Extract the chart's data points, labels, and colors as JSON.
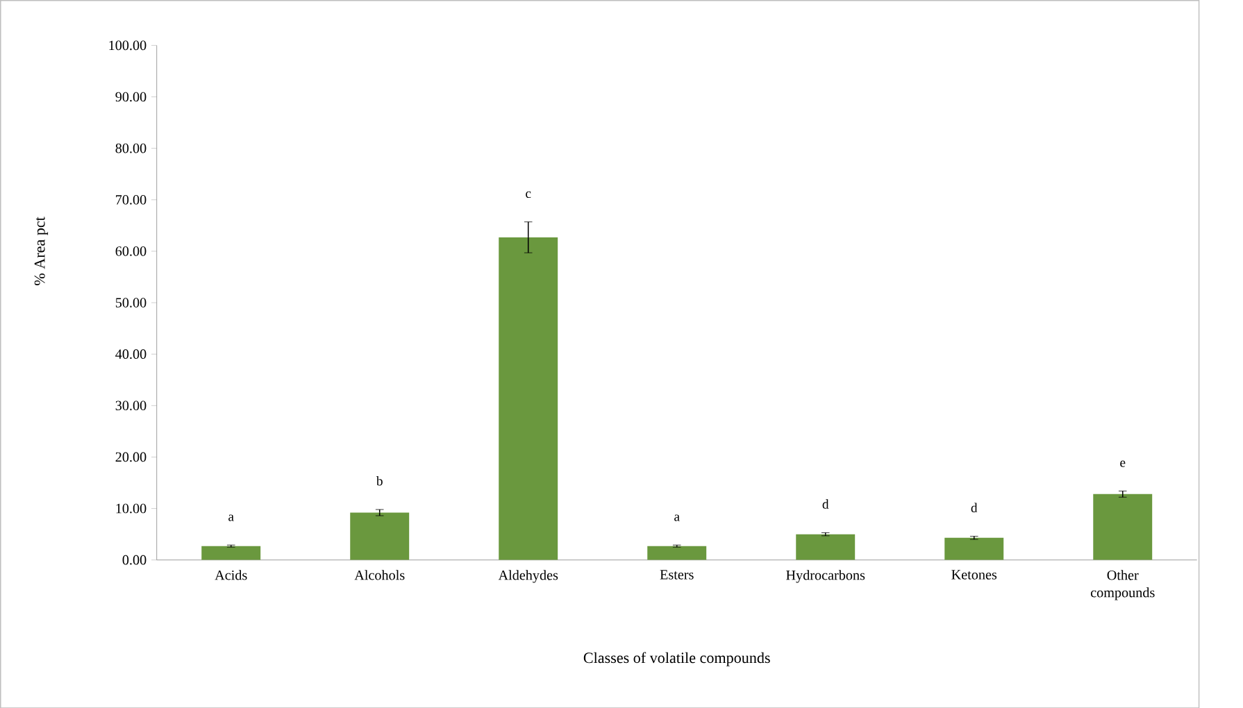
{
  "chart_data": {
    "type": "bar",
    "xlabel": "Classes of volatile compounds",
    "ylabel": "% Area pct",
    "categories": [
      "Acids",
      "Alcohols",
      "Aldehydes",
      "Esters",
      "Hydrocarbons",
      "Ketones",
      "Other compounds"
    ],
    "values": [
      2.7,
      9.2,
      62.7,
      2.7,
      5.0,
      4.3,
      12.8
    ],
    "errors": [
      0.2,
      0.6,
      3.0,
      0.2,
      0.3,
      0.3,
      0.6
    ],
    "color": "#6a983e",
    "ylim": [
      0,
      100
    ],
    "yticks": [
      {
        "value": 0,
        "label": "0.00"
      },
      {
        "value": 10,
        "label": "10.00"
      },
      {
        "value": 20,
        "label": "20.00"
      },
      {
        "value": 30,
        "label": "30.00"
      },
      {
        "value": 40,
        "label": "40.00"
      },
      {
        "value": 50,
        "label": "50.00"
      },
      {
        "value": 60,
        "label": "60.00"
      },
      {
        "value": 70,
        "label": "70.00"
      },
      {
        "value": 80,
        "label": "80.00"
      },
      {
        "value": 90,
        "label": "90.00"
      },
      {
        "value": 100,
        "label": "100.00"
      }
    ],
    "annotations": [
      "a",
      "b",
      "c",
      "a",
      "d",
      "d",
      "e"
    ],
    "grid": false
  }
}
